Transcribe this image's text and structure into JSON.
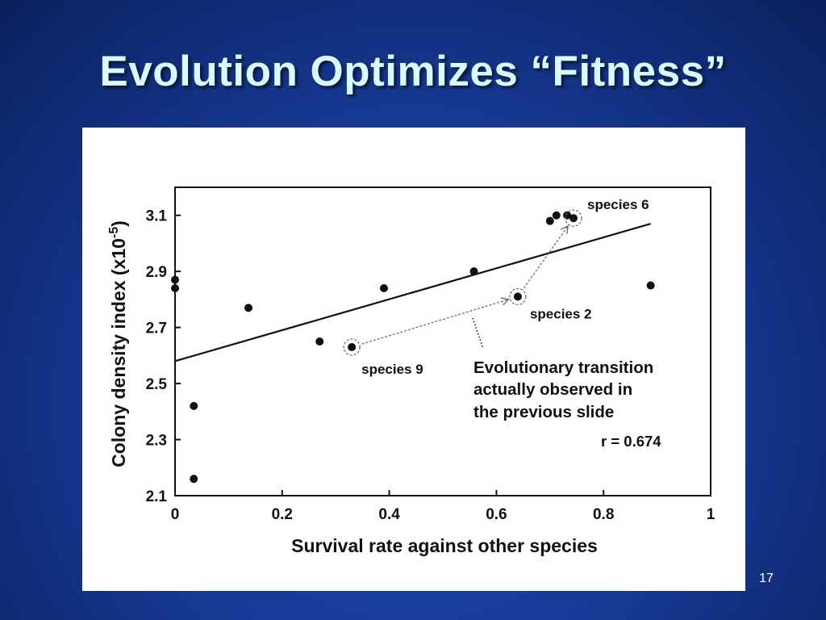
{
  "slide": {
    "title": "Evolution Optimizes “Fitness”",
    "page_number": "17",
    "background_color": "#173b98",
    "title_color": "#d9fbff"
  },
  "chart_data": {
    "type": "scatter",
    "title": "",
    "xlabel": "Survival rate against other species",
    "ylabel_main": "Colony density index (x10",
    "ylabel_exp": "-5",
    "ylabel_close": ")",
    "xlim": [
      0,
      1
    ],
    "ylim": [
      2.1,
      3.2
    ],
    "xticks": [
      "0",
      "0.2",
      "0.4",
      "0.6",
      "0.8",
      "1"
    ],
    "xtick_values": [
      0,
      0.2,
      0.4,
      0.6,
      0.8,
      1
    ],
    "yticks": [
      "2.1",
      "2.3",
      "2.5",
      "2.7",
      "2.9",
      "3.1"
    ],
    "ytick_values": [
      2.1,
      2.3,
      2.5,
      2.7,
      2.9,
      3.1
    ],
    "grid": false,
    "points": [
      {
        "x": 0.0,
        "y": 2.87
      },
      {
        "x": 0.0,
        "y": 2.84
      },
      {
        "x": 0.035,
        "y": 2.42
      },
      {
        "x": 0.035,
        "y": 2.16
      },
      {
        "x": 0.137,
        "y": 2.77
      },
      {
        "x": 0.27,
        "y": 2.65
      },
      {
        "x": 0.33,
        "y": 2.63
      },
      {
        "x": 0.39,
        "y": 2.84
      },
      {
        "x": 0.558,
        "y": 2.9
      },
      {
        "x": 0.64,
        "y": 2.81
      },
      {
        "x": 0.7,
        "y": 3.08
      },
      {
        "x": 0.712,
        "y": 3.1
      },
      {
        "x": 0.732,
        "y": 3.1
      },
      {
        "x": 0.744,
        "y": 3.09
      },
      {
        "x": 0.888,
        "y": 2.85
      }
    ],
    "regression_line": {
      "x": [
        0.0,
        0.888
      ],
      "y": [
        2.58,
        3.07
      ]
    },
    "highlighted": [
      {
        "label": "species 9",
        "x": 0.33,
        "y": 2.63
      },
      {
        "label": "species 2",
        "x": 0.64,
        "y": 2.81
      },
      {
        "label": "species 6",
        "x": 0.744,
        "y": 3.09
      }
    ],
    "transition_arrows": [
      {
        "from": {
          "x": 0.33,
          "y": 2.63
        },
        "to": {
          "x": 0.64,
          "y": 2.81
        }
      },
      {
        "from": {
          "x": 0.64,
          "y": 2.81
        },
        "to": {
          "x": 0.744,
          "y": 3.09
        }
      }
    ],
    "annotation_lines": [
      "Evolutionary transition",
      "actually observed in",
      "the previous slide"
    ],
    "r_value": "r = 0.674"
  }
}
